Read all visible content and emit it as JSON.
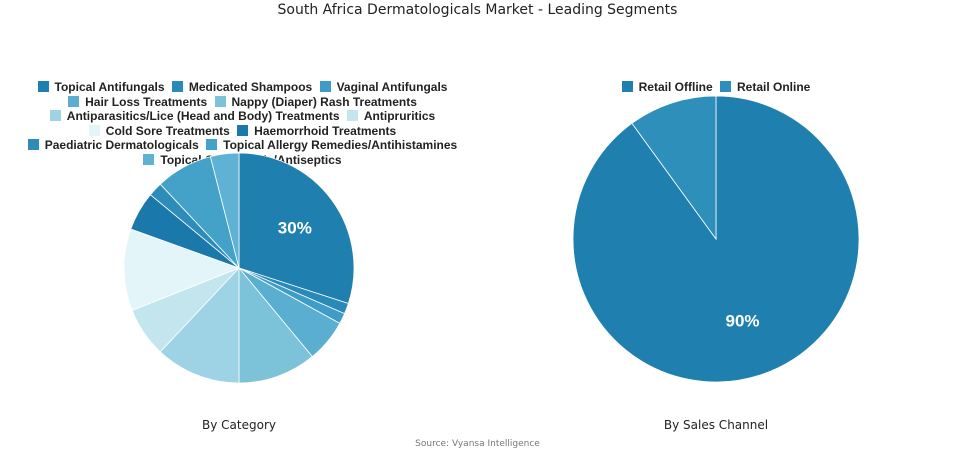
{
  "title": "South Africa Dermatologicals Market - Leading Segments",
  "source": "Source: Vyansa Intelligence",
  "chart_data": [
    {
      "type": "pie",
      "subtitle": "By Category",
      "legend_placement": "top",
      "labels": [
        "Topical Antifungals",
        "Medicated Shampoos",
        "Vaginal Antifungals",
        "Hair Loss Treatments",
        "Nappy (Diaper) Rash Treatments",
        "Antiparasitics/Lice (Head and Body) Treatments",
        "Antipruritics",
        "Cold Sore Treatments",
        "Haemorrhoid Treatments",
        "Paediatric Dermatologicals",
        "Topical Allergy Remedies/Antihistamines",
        "Topical Germicidals/Antiseptics"
      ],
      "values": [
        30,
        1.5,
        1.5,
        6,
        11,
        12,
        7,
        11.5,
        5.5,
        2,
        8,
        4
      ],
      "colors": [
        "#1f80b0",
        "#2a8ab7",
        "#3e9cc6",
        "#5aaed0",
        "#7cc3da",
        "#9dd3e4",
        "#c3e6ee",
        "#e4f5f9",
        "#1b78aa",
        "#2d8cba",
        "#44a2c9",
        "#5fb2d4"
      ],
      "data_labels": [
        "30%",
        "",
        "",
        "",
        "",
        "",
        "",
        "",
        "",
        "",
        "",
        ""
      ]
    },
    {
      "type": "pie",
      "subtitle": "By Sales Channel",
      "legend_placement": "top",
      "labels": [
        "Retail Offline",
        "Retail Online"
      ],
      "values": [
        90,
        10
      ],
      "colors": [
        "#1f80b0",
        "#2f8fbb"
      ],
      "data_labels": [
        "90%",
        ""
      ]
    }
  ]
}
